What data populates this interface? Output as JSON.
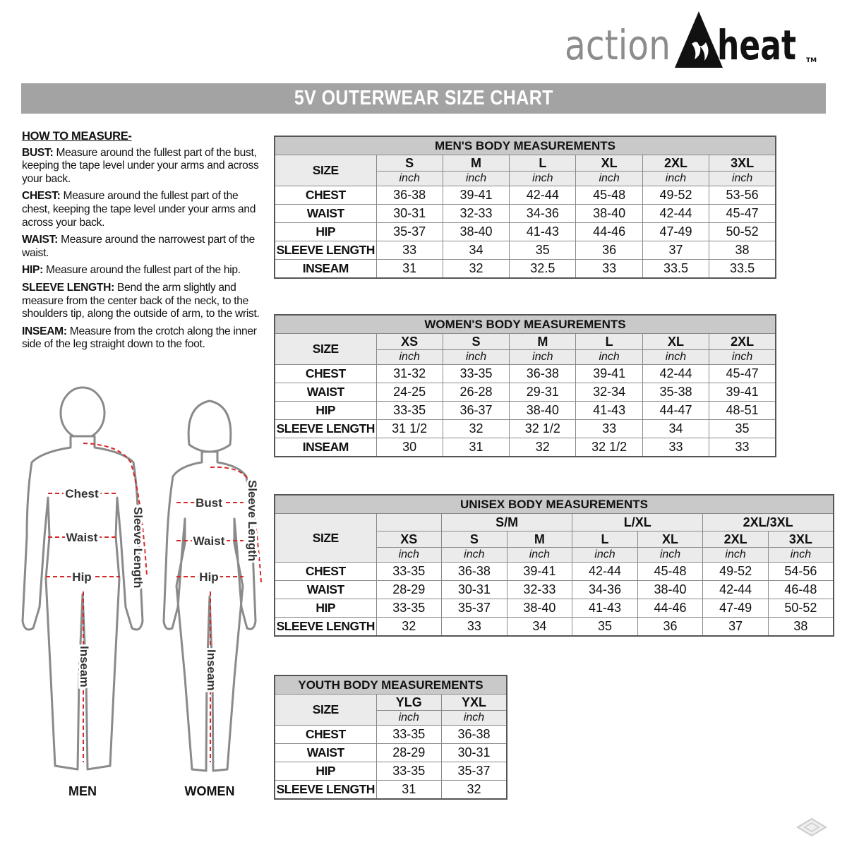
{
  "brand": {
    "logo_text_left": "action",
    "logo_text_right": "heat",
    "trademark": "TM"
  },
  "title": "5V OUTERWEAR SIZE CHART",
  "how_to_measure": {
    "heading": "HOW TO MEASURE-",
    "items": [
      {
        "term": "BUST:",
        "text": " Measure around the fullest part of the bust, keeping the tape level under your arms and across your back."
      },
      {
        "term": "CHEST:",
        "text": " Measure around the fullest part of the chest, keeping the tape level under your arms and across your back."
      },
      {
        "term": "WAIST:",
        "text": " Measure around the narrowest part of the waist."
      },
      {
        "term": "HIP:",
        "text": " Measure around the fullest part of the hip."
      },
      {
        "term": "SLEEVE LENGTH:",
        "text": " Bend the arm slightly and measure from the center back of the neck, to the shoulders tip, along the outside of arm, to the wrist."
      },
      {
        "term": "INSEAM:",
        "text": " Measure from the crotch along the inner side of the leg straight down to the foot."
      }
    ]
  },
  "figures": {
    "men": {
      "caption": "MEN",
      "chest": "Chest",
      "waist": "Waist",
      "hip": "Hip",
      "sleeve": "Sleeve Length",
      "inseam": "Inseam"
    },
    "women": {
      "caption": "WOMEN",
      "bust": "Bust",
      "waist": "Waist",
      "hip": "Hip",
      "sleeve": "Sleeve Length",
      "inseam": "Inseam"
    },
    "measure_line_color": "#d42a2a"
  },
  "tables": {
    "men": {
      "title": "MEN'S BODY MEASUREMENTS",
      "size_label": "SIZE",
      "unit": "inch",
      "sizes": [
        "S",
        "M",
        "L",
        "XL",
        "2XL",
        "3XL"
      ],
      "rows": [
        {
          "label": "CHEST",
          "values": [
            "36-38",
            "39-41",
            "42-44",
            "45-48",
            "49-52",
            "53-56"
          ]
        },
        {
          "label": "WAIST",
          "values": [
            "30-31",
            "32-33",
            "34-36",
            "38-40",
            "42-44",
            "45-47"
          ]
        },
        {
          "label": "HIP",
          "values": [
            "35-37",
            "38-40",
            "41-43",
            "44-46",
            "47-49",
            "50-52"
          ]
        },
        {
          "label": "SLEEVE LENGTH",
          "values": [
            "33",
            "34",
            "35",
            "36",
            "37",
            "38"
          ]
        },
        {
          "label": "INSEAM",
          "values": [
            "31",
            "32",
            "32.5",
            "33",
            "33.5",
            "33.5"
          ]
        }
      ]
    },
    "women": {
      "title": "WOMEN'S BODY MEASUREMENTS",
      "size_label": "SIZE",
      "unit": "inch",
      "sizes": [
        "XS",
        "S",
        "M",
        "L",
        "XL",
        "2XL"
      ],
      "rows": [
        {
          "label": "CHEST",
          "values": [
            "31-32",
            "33-35",
            "36-38",
            "39-41",
            "42-44",
            "45-47"
          ]
        },
        {
          "label": "WAIST",
          "values": [
            "24-25",
            "26-28",
            "29-31",
            "32-34",
            "35-38",
            "39-41"
          ]
        },
        {
          "label": "HIP",
          "values": [
            "33-35",
            "36-37",
            "38-40",
            "41-43",
            "44-47",
            "48-51"
          ]
        },
        {
          "label": "SLEEVE LENGTH",
          "values": [
            "31 1/2",
            "32",
            "32 1/2",
            "33",
            "34",
            "35"
          ]
        },
        {
          "label": "INSEAM",
          "values": [
            "30",
            "31",
            "32",
            "32 1/2",
            "33",
            "33"
          ]
        }
      ]
    },
    "unisex": {
      "title": "UNISEX BODY MEASUREMENTS",
      "size_label": "SIZE",
      "unit": "inch",
      "groups": [
        {
          "label": "",
          "span": 1
        },
        {
          "label": "S/M",
          "span": 2
        },
        {
          "label": "L/XL",
          "span": 2
        },
        {
          "label": "2XL/3XL",
          "span": 2
        }
      ],
      "sizes": [
        "XS",
        "S",
        "M",
        "L",
        "XL",
        "2XL",
        "3XL"
      ],
      "rows": [
        {
          "label": "CHEST",
          "values": [
            "33-35",
            "36-38",
            "39-41",
            "42-44",
            "45-48",
            "49-52",
            "54-56"
          ]
        },
        {
          "label": "WAIST",
          "values": [
            "28-29",
            "30-31",
            "32-33",
            "34-36",
            "38-40",
            "42-44",
            "46-48"
          ]
        },
        {
          "label": "HIP",
          "values": [
            "33-35",
            "35-37",
            "38-40",
            "41-43",
            "44-46",
            "47-49",
            "50-52"
          ]
        },
        {
          "label": "SLEEVE LENGTH",
          "values": [
            "32",
            "33",
            "34",
            "35",
            "36",
            "37",
            "38"
          ]
        }
      ]
    },
    "youth": {
      "title": "YOUTH BODY MEASUREMENTS",
      "size_label": "SIZE",
      "unit": "inch",
      "sizes": [
        "YLG",
        "YXL"
      ],
      "rows": [
        {
          "label": "CHEST",
          "values": [
            "33-35",
            "36-38"
          ]
        },
        {
          "label": "WAIST",
          "values": [
            "28-29",
            "30-31"
          ]
        },
        {
          "label": "HIP",
          "values": [
            "33-35",
            "35-37"
          ]
        },
        {
          "label": "SLEEVE LENGTH",
          "values": [
            "31",
            "32"
          ]
        }
      ]
    }
  }
}
